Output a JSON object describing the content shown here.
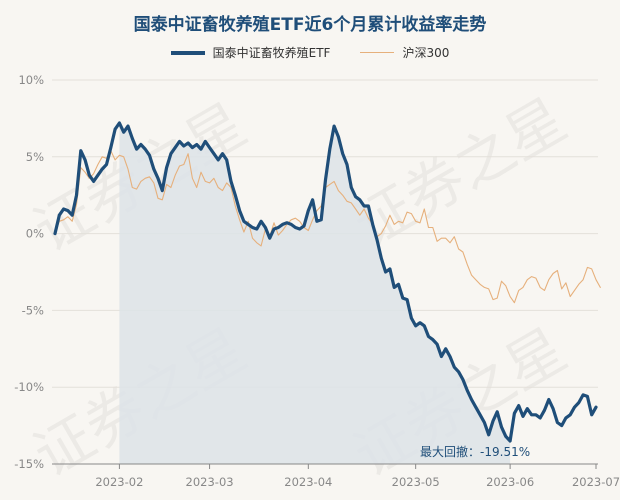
{
  "chart_data": {
    "type": "line",
    "title": "国泰中证畜牧养殖ETF近6个月累计收益率走势",
    "xlabel": "",
    "ylabel": "",
    "ylim": [
      -15,
      10
    ],
    "yticks": [
      "10%",
      "5%",
      "0%",
      "-5%",
      "-10%",
      "-15%"
    ],
    "xticks": [
      "2023-02",
      "2023-03",
      "2023-04",
      "2023-05",
      "2023-06",
      "2023-07"
    ],
    "grid": true,
    "legend_position": "top",
    "series": [
      {
        "name": "国泰中证畜牧养殖ETF",
        "color": "#1f4e79",
        "values": [
          0.0,
          1.2,
          1.6,
          1.5,
          1.2,
          2.5,
          5.4,
          4.8,
          3.8,
          3.4,
          3.8,
          4.2,
          4.5,
          5.6,
          6.8,
          7.2,
          6.6,
          7.0,
          6.2,
          5.5,
          5.8,
          5.5,
          5.1,
          4.2,
          3.6,
          2.8,
          4.3,
          5.2,
          5.6,
          6.0,
          5.7,
          5.9,
          5.6,
          5.8,
          5.5,
          6.0,
          5.6,
          5.2,
          4.8,
          5.2,
          4.8,
          3.4,
          2.5,
          1.5,
          0.8,
          0.6,
          0.4,
          0.3,
          0.8,
          0.4,
          -0.3,
          0.3,
          0.4,
          0.6,
          0.7,
          0.6,
          0.4,
          0.3,
          0.5,
          1.5,
          2.2,
          0.8,
          0.9,
          3.5,
          5.5,
          7.0,
          6.3,
          5.2,
          4.5,
          3.0,
          2.4,
          2.2,
          1.8,
          1.8,
          0.6,
          -0.4,
          -1.6,
          -2.5,
          -2.3,
          -3.5,
          -3.3,
          -4.2,
          -4.3,
          -5.5,
          -6.0,
          -5.8,
          -6.0,
          -6.7,
          -6.9,
          -7.2,
          -8.0,
          -7.5,
          -8.0,
          -8.7,
          -9.0,
          -9.5,
          -10.2,
          -10.8,
          -11.3,
          -11.8,
          -12.3,
          -13.1,
          -12.2,
          -11.6,
          -12.6,
          -13.2,
          -13.5,
          -11.7,
          -11.2,
          -11.9,
          -11.4,
          -11.8,
          -11.8,
          -12.0,
          -11.5,
          -10.8,
          -11.4,
          -12.3,
          -12.5,
          -12.0,
          -11.8,
          -11.3,
          -11.0,
          -10.5,
          -10.6,
          -11.8,
          -11.3
        ]
      },
      {
        "name": "沪深300",
        "color": "#e6b07c",
        "values": [
          0.0,
          0.8,
          0.9,
          1.1,
          0.8,
          1.9,
          4.3,
          4.0,
          3.6,
          3.9,
          4.5,
          5.0,
          4.9,
          5.4,
          4.8,
          5.1,
          5.0,
          4.2,
          3.0,
          2.9,
          3.4,
          3.6,
          3.7,
          3.3,
          2.3,
          2.2,
          3.2,
          3.0,
          3.8,
          4.4,
          4.5,
          5.2,
          3.6,
          3.0,
          4.0,
          3.4,
          3.3,
          3.6,
          3.0,
          2.8,
          3.3,
          3.0,
          1.8,
          0.9,
          0.1,
          0.8,
          -0.3,
          -0.6,
          -0.8,
          0.3,
          -0.2,
          0.7,
          -0.1,
          0.2,
          0.6,
          0.9,
          1.0,
          0.8,
          0.4,
          0.2,
          0.9,
          1.5,
          1.8,
          3.0,
          3.2,
          3.4,
          2.8,
          2.5,
          2.1,
          2.0,
          1.6,
          1.2,
          1.6,
          1.0,
          0.6,
          -0.2,
          0.0,
          0.5,
          1.2,
          0.6,
          0.8,
          0.7,
          1.4,
          1.3,
          0.8,
          0.7,
          1.6,
          0.4,
          0.4,
          -0.5,
          -0.3,
          -0.3,
          -0.6,
          -0.2,
          -1.0,
          -1.2,
          -2.0,
          -2.7,
          -3.0,
          -3.3,
          -3.5,
          -3.6,
          -4.3,
          -4.2,
          -3.1,
          -3.4,
          -4.1,
          -4.5,
          -3.7,
          -3.5,
          -3.0,
          -2.8,
          -2.9,
          -3.5,
          -3.7,
          -3.0,
          -2.6,
          -2.4,
          -3.6,
          -3.2,
          -4.1,
          -3.7,
          -3.3,
          -3.0,
          -2.2,
          -2.3,
          -3.0,
          -3.5
        ]
      }
    ],
    "annotation": "最大回撤：-19.51%",
    "watermark_text": "证券之星"
  }
}
